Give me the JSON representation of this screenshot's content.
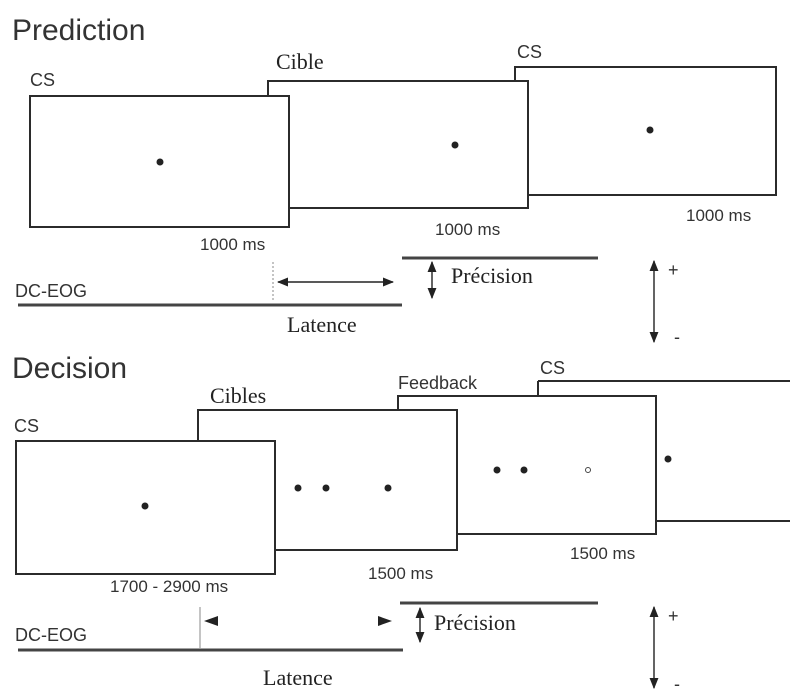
{
  "prediction": {
    "section_title": "Prediction",
    "screens": [
      {
        "label": "CS",
        "duration": "1000 ms"
      },
      {
        "label": "Cible",
        "duration": "1000 ms"
      },
      {
        "label": "CS",
        "duration": "1000 ms"
      }
    ],
    "eog_label": "DC-EOG",
    "precision_label": "Précision",
    "latency_label": "Latence",
    "polarity_plus": "+",
    "polarity_minus": "-"
  },
  "decision": {
    "section_title": "Decision",
    "screens": [
      {
        "label": "CS",
        "duration": "1700 - 2900 ms"
      },
      {
        "label": "Cibles",
        "duration": "1500 ms"
      },
      {
        "label": "Feedback",
        "duration": "1500 ms"
      },
      {
        "label": "CS"
      }
    ],
    "eog_label": "DC-EOG",
    "precision_label": "Précision",
    "latency_label": "Latence",
    "polarity_plus": "+",
    "polarity_minus": "-"
  },
  "colors": {
    "line": "#2b2b2b",
    "text": "#333333",
    "eog_line": "#444444"
  }
}
